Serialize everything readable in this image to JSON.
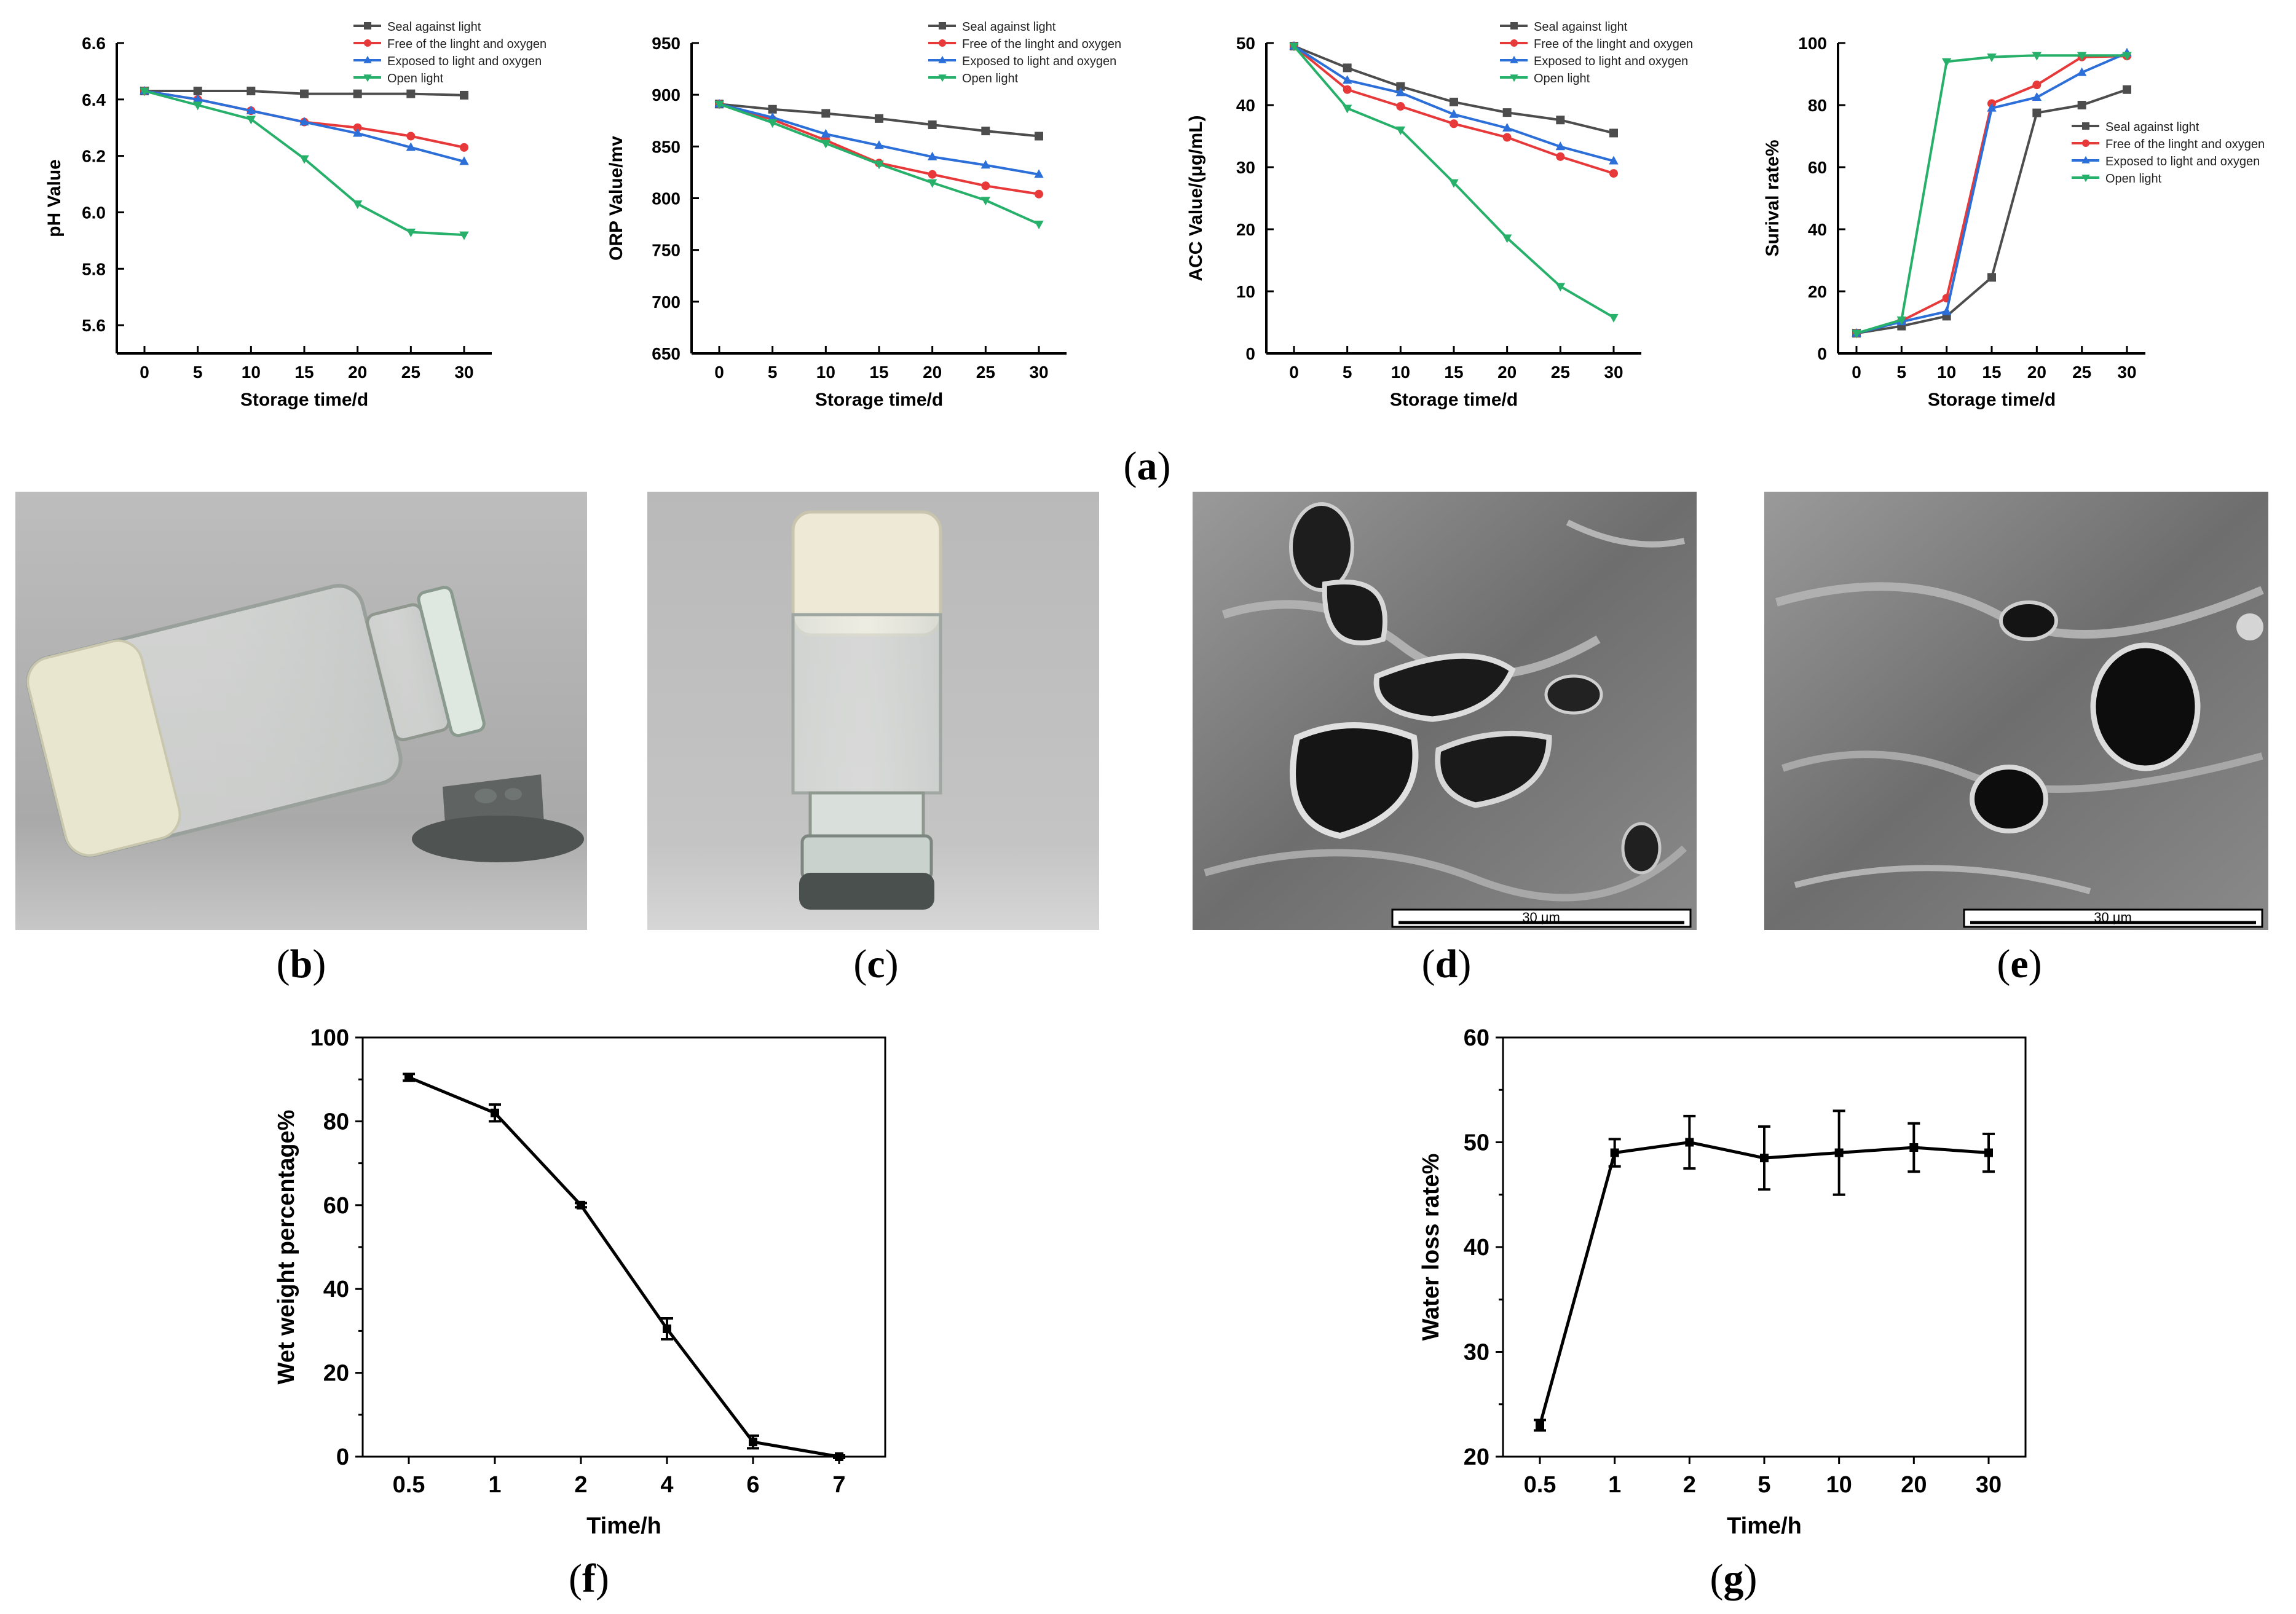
{
  "captions": [
    "a",
    "b",
    "c",
    "d",
    "e",
    "f",
    "g"
  ],
  "scale_bar_label": "30 μm",
  "legend_entries": [
    "Seal against light",
    "Free of the linght and oxygen",
    "Exposed to light and oxygen",
    "Open light"
  ],
  "series_colors": [
    "#4d4d4d",
    "#e8393a",
    "#2c6fd8",
    "#27b06a"
  ],
  "chart_data": [
    {
      "panel": "a",
      "type": "line",
      "xlabel": "Storage time/d",
      "ylabel": "pH Value",
      "x": [
        0,
        5,
        10,
        15,
        20,
        25,
        30
      ],
      "xticks": [
        "0",
        "5",
        "10",
        "15",
        "20",
        "25",
        "30"
      ],
      "yticks": [
        "5.6",
        "5.8",
        "6.0",
        "6.2",
        "6.4",
        "6.6"
      ],
      "ylim": [
        5.5,
        6.6
      ],
      "legend": "top-right",
      "series": [
        {
          "name": "Seal against light",
          "values": [
            6.43,
            6.43,
            6.43,
            6.42,
            6.42,
            6.42,
            6.415
          ]
        },
        {
          "name": "Free of the linght and oxygen",
          "values": [
            6.43,
            6.4,
            6.36,
            6.32,
            6.3,
            6.27,
            6.23
          ]
        },
        {
          "name": "Exposed to light and oxygen",
          "values": [
            6.43,
            6.4,
            6.36,
            6.32,
            6.28,
            6.23,
            6.18
          ]
        },
        {
          "name": "Open light",
          "values": [
            6.43,
            6.38,
            6.33,
            6.19,
            6.03,
            5.93,
            5.92
          ]
        }
      ]
    },
    {
      "panel": "a",
      "type": "line",
      "xlabel": "Storage time/d",
      "ylabel": "ORP Value/mv",
      "x": [
        0,
        5,
        10,
        15,
        20,
        25,
        30
      ],
      "xticks": [
        "0",
        "5",
        "10",
        "15",
        "20",
        "25",
        "30"
      ],
      "yticks": [
        "650",
        "700",
        "750",
        "800",
        "850",
        "900",
        "950"
      ],
      "ylim": [
        650,
        950
      ],
      "legend": "top-right",
      "series": [
        {
          "name": "Seal against light",
          "values": [
            891,
            886,
            882,
            877,
            871,
            865,
            860
          ]
        },
        {
          "name": "Free of the linght and oxygen",
          "values": [
            891,
            876,
            856,
            834,
            823,
            812,
            804
          ]
        },
        {
          "name": "Exposed to light and oxygen",
          "values": [
            891,
            878,
            862,
            851,
            840,
            832,
            823
          ]
        },
        {
          "name": "Open light",
          "values": [
            891,
            873,
            853,
            833,
            815,
            798,
            775
          ]
        }
      ]
    },
    {
      "panel": "a",
      "type": "line",
      "xlabel": "Storage time/d",
      "ylabel": "ACC Value/(μg/mL)",
      "x": [
        0,
        5,
        10,
        15,
        20,
        25,
        30
      ],
      "xticks": [
        "0",
        "5",
        "10",
        "15",
        "20",
        "25",
        "30"
      ],
      "yticks": [
        "0",
        "10",
        "20",
        "30",
        "40",
        "50"
      ],
      "ylim": [
        0,
        50
      ],
      "legend": "top-right",
      "series": [
        {
          "name": "Seal against light",
          "values": [
            49.5,
            46.0,
            43.0,
            40.5,
            38.8,
            37.6,
            35.5
          ]
        },
        {
          "name": "Free of the linght and oxygen",
          "values": [
            49.5,
            42.5,
            39.8,
            37.0,
            34.8,
            31.7,
            29.0
          ]
        },
        {
          "name": "Exposed to light and oxygen",
          "values": [
            49.5,
            44.0,
            42.0,
            38.5,
            36.3,
            33.3,
            31.0
          ]
        },
        {
          "name": "Open light",
          "values": [
            49.5,
            39.5,
            36.0,
            27.5,
            18.6,
            10.8,
            5.8
          ]
        }
      ]
    },
    {
      "panel": "a",
      "type": "line",
      "xlabel": "Storage time/d",
      "ylabel": "Surival rate%",
      "x": [
        0,
        5,
        10,
        15,
        20,
        25,
        30
      ],
      "xticks": [
        "0",
        "5",
        "10",
        "15",
        "20",
        "25",
        "30"
      ],
      "yticks": [
        "0",
        "20",
        "40",
        "60",
        "80",
        "100"
      ],
      "ylim": [
        0,
        100
      ],
      "legend": "right",
      "series": [
        {
          "name": "Seal against light",
          "values": [
            6.5,
            8.8,
            12.0,
            24.5,
            77.5,
            80.0,
            85.0
          ]
        },
        {
          "name": "Free of the linght and oxygen",
          "values": [
            6.5,
            10.5,
            17.8,
            80.5,
            86.5,
            95.5,
            95.8
          ]
        },
        {
          "name": "Exposed to light and oxygen",
          "values": [
            6.5,
            10.2,
            13.5,
            79.0,
            82.5,
            90.5,
            96.8
          ]
        },
        {
          "name": "Open light",
          "values": [
            6.5,
            10.8,
            94.0,
            95.5,
            96.0,
            96.0,
            96.0
          ]
        }
      ]
    },
    {
      "panel": "f",
      "type": "line",
      "xlabel": "Time/h",
      "ylabel": "Wet weight percentage%",
      "categories": [
        "0.5",
        "1",
        "2",
        "4",
        "6",
        "7"
      ],
      "yticks": [
        "0",
        "20",
        "40",
        "60",
        "80",
        "100"
      ],
      "ylim": [
        0,
        100
      ],
      "values": [
        90.5,
        82.0,
        60.0,
        30.5,
        3.5,
        0.0
      ],
      "errors": [
        0.8,
        2.0,
        0.5,
        2.5,
        1.5,
        0.3
      ]
    },
    {
      "panel": "g",
      "type": "line",
      "xlabel": "Time/h",
      "ylabel": "Water loss rate%",
      "categories": [
        "0.5",
        "1",
        "2",
        "5",
        "10",
        "20",
        "30"
      ],
      "yticks": [
        "20",
        "30",
        "40",
        "50",
        "60"
      ],
      "ylim": [
        20,
        60
      ],
      "values": [
        23.0,
        49.0,
        50.0,
        48.5,
        49.0,
        49.5,
        49.0
      ],
      "errors": [
        0.5,
        1.3,
        2.5,
        3.0,
        4.0,
        2.3,
        1.8
      ]
    }
  ]
}
